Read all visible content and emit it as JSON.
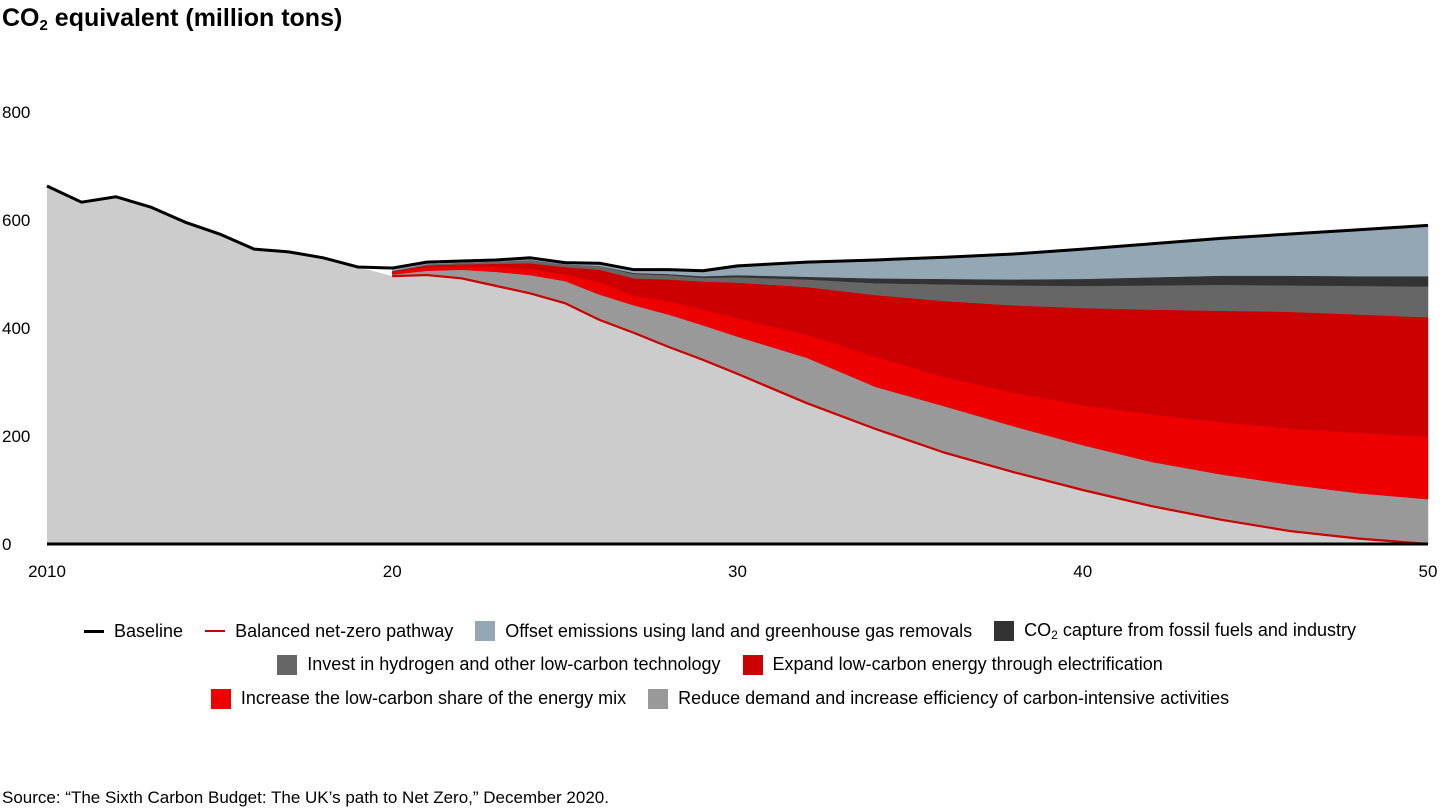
{
  "title": {
    "prefix": "CO",
    "sub": "2",
    "suffix": " equivalent (million tons)"
  },
  "source": "Source: “The Sixth Carbon Budget: The UK’s path to Net Zero,” December 2020.",
  "chart_data": {
    "type": "area",
    "stacked": true,
    "title": "CO2 equivalent (million tons)",
    "xlabel": "",
    "ylabel": "CO2 equivalent (million tons)",
    "xlim": [
      2010,
      2050
    ],
    "ylim": [
      0,
      800
    ],
    "grid": false,
    "legend_placement": "bottom",
    "x_ticks": [
      {
        "value": 2010,
        "label": "2010"
      },
      {
        "value": 2020,
        "label": "20"
      },
      {
        "value": 2030,
        "label": "30"
      },
      {
        "value": 2040,
        "label": "40"
      },
      {
        "value": 2050,
        "label": "50"
      }
    ],
    "y_ticks": [
      {
        "value": 0,
        "label": "0"
      },
      {
        "value": 200,
        "label": "200"
      },
      {
        "value": 400,
        "label": "400"
      },
      {
        "value": 600,
        "label": "600"
      },
      {
        "value": 800,
        "label": "800"
      }
    ],
    "baseline": {
      "name": "Baseline",
      "color": "#000000",
      "x": [
        2010,
        2011,
        2012,
        2013,
        2014,
        2015,
        2016,
        2017,
        2018,
        2019,
        2020,
        2021,
        2022,
        2023,
        2024,
        2025,
        2026,
        2027,
        2028,
        2029,
        2030,
        2032,
        2034,
        2036,
        2038,
        2040,
        2042,
        2044,
        2046,
        2048,
        2050
      ],
      "values": [
        663,
        633,
        643,
        624,
        596,
        574,
        546,
        541,
        530,
        513,
        511,
        522,
        524,
        526,
        530,
        521,
        520,
        508,
        508,
        506,
        515,
        522,
        526,
        531,
        537,
        546,
        556,
        566,
        574,
        582,
        590
      ]
    },
    "net_zero": {
      "name": "Balanced net-zero pathway",
      "color": "#cc0000",
      "x": [
        2020,
        2021,
        2022,
        2023,
        2024,
        2025,
        2026,
        2027,
        2028,
        2029,
        2030,
        2032,
        2034,
        2036,
        2038,
        2040,
        2042,
        2044,
        2046,
        2048,
        2050
      ],
      "values": [
        496,
        498,
        492,
        478,
        464,
        446,
        415,
        391,
        365,
        341,
        315,
        261,
        213,
        169,
        133,
        100,
        70,
        45,
        24,
        10,
        0
      ]
    },
    "stack_x": [
      2020,
      2021,
      2022,
      2023,
      2024,
      2025,
      2026,
      2027,
      2028,
      2029,
      2030,
      2032,
      2034,
      2036,
      2038,
      2040,
      2042,
      2044,
      2046,
      2048,
      2050
    ],
    "series": [
      {
        "name": "Reduce demand and increase efficiency of carbon-intensive activities",
        "color": "#999999",
        "values": [
          3,
          8,
          16,
          26,
          34,
          41,
          47,
          51,
          60,
          64,
          69,
          84,
          78,
          86,
          85,
          83,
          82,
          84,
          86,
          84,
          83
        ]
      },
      {
        "name": "Increase the low-carbon share of the energy mix",
        "color": "#ee0000",
        "values": [
          4,
          7,
          7,
          10,
          11,
          13,
          23,
          18,
          25,
          29,
          34,
          43,
          56,
          54,
          62,
          74,
          88,
          97,
          104,
          112,
          116
        ]
      },
      {
        "name": "Expand low-carbon energy through electrification",
        "color": "#cc0000",
        "values": [
          2,
          3,
          3,
          5,
          11,
          13,
          23,
          32,
          40,
          52,
          66,
          88,
          114,
          141,
          162,
          180,
          194,
          206,
          216,
          219,
          221
        ]
      },
      {
        "name": "Invest in hydrogen and other low-carbon technology",
        "color": "#666666",
        "values": [
          1,
          2,
          3,
          4,
          6,
          5,
          7,
          8,
          8,
          7,
          10,
          14,
          22,
          31,
          37,
          41,
          45,
          48,
          49,
          53,
          57
        ]
      },
      {
        "name": "CO2 capture from fossil fuels and industry",
        "color": "#333333",
        "values": [
          0,
          0,
          0,
          0,
          0,
          0,
          0,
          2,
          2,
          3,
          4,
          5,
          9,
          10,
          11,
          13,
          15,
          17,
          18,
          18,
          19
        ]
      },
      {
        "name": "Offset emissions using land and greenhouse gas removals",
        "color": "#94a7b4",
        "values": [
          5,
          4,
          3,
          3,
          4,
          3,
          5,
          6,
          8,
          10,
          17,
          27,
          34,
          40,
          47,
          55,
          62,
          69,
          77,
          86,
          94
        ]
      }
    ],
    "remaining_emissions_color": "#cccccc"
  },
  "legend": {
    "baseline": "Baseline",
    "net_zero": "Balanced net-zero pathway",
    "offset": "Offset emissions using land and greenhouse gas removals",
    "capture_prefix": "CO",
    "capture_sub": "2",
    "capture_suffix": " capture from fossil fuels and industry",
    "hydrogen": "Invest in hydrogen and other low-carbon technology",
    "electrification": "Expand low-carbon energy through electrification",
    "low_carbon_share": "Increase the low-carbon share of the energy mix",
    "reduce_demand": "Reduce demand and increase efficiency of carbon-intensive activities"
  }
}
